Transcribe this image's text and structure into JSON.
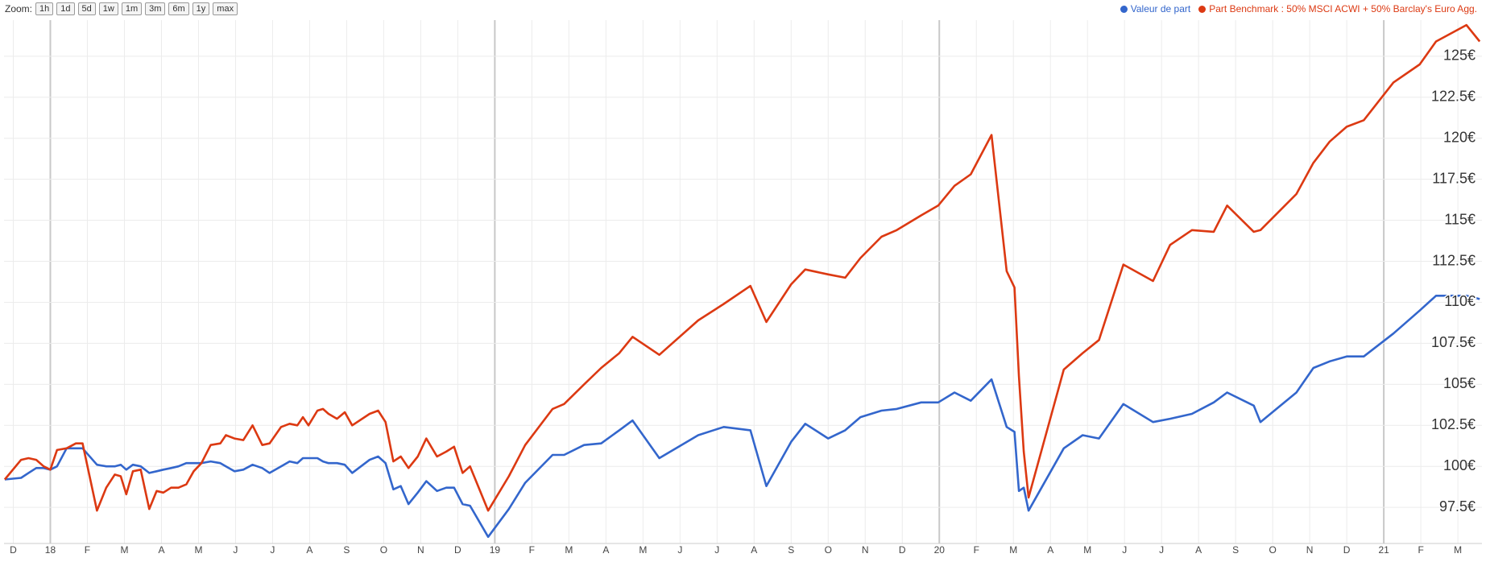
{
  "toolbar": {
    "label": "Zoom:",
    "buttons": [
      "1h",
      "1d",
      "5d",
      "1w",
      "1m",
      "3m",
      "6m",
      "1y",
      "max"
    ]
  },
  "chart_data": {
    "type": "line",
    "x": [
      -0.23,
      0.21,
      0.41,
      0.62,
      0.82,
      1.0,
      1.18,
      1.44,
      1.69,
      1.87,
      2.26,
      2.51,
      2.74,
      2.9,
      3.05,
      3.23,
      3.44,
      3.67,
      3.87,
      4.05,
      4.26,
      4.46,
      4.67,
      4.87,
      5.08,
      5.33,
      5.59,
      5.74,
      5.97,
      6.21,
      6.46,
      6.72,
      6.92,
      7.23,
      7.46,
      7.67,
      7.82,
      7.97,
      8.21,
      8.36,
      8.51,
      8.74,
      8.95,
      9.15,
      9.62,
      9.85,
      10.05,
      10.26,
      10.46,
      10.67,
      10.92,
      11.15,
      11.44,
      11.69,
      11.9,
      12.13,
      12.33,
      12.82,
      13.38,
      13.82,
      14.56,
      14.87,
      15.41,
      15.87,
      16.36,
      16.72,
      17.44,
      18.49,
      19.18,
      19.9,
      20.33,
      21.0,
      21.38,
      22.0,
      22.46,
      22.87,
      23.44,
      23.85,
      24.51,
      24.97,
      25.41,
      25.85,
      26.41,
      26.82,
      27.03,
      27.15,
      27.28,
      27.41,
      28.36,
      28.87,
      29.31,
      29.97,
      30.77,
      31.23,
      31.82,
      32.41,
      32.77,
      33.49,
      33.67,
      34.64,
      35.1,
      35.54,
      36.0,
      36.46,
      37.26,
      37.97,
      38.41,
      39.23,
      39.59
    ],
    "series": [
      {
        "name": "Valeur de part",
        "color": "#3366cc",
        "values": [
          99.2,
          99.3,
          99.6,
          99.9,
          99.9,
          99.8,
          100.0,
          101.1,
          101.1,
          101.1,
          100.1,
          100.0,
          100.0,
          100.1,
          99.8,
          100.1,
          100.0,
          99.6,
          99.7,
          99.8,
          99.9,
          100.0,
          100.2,
          100.2,
          100.2,
          100.3,
          100.2,
          100.0,
          99.7,
          99.8,
          100.1,
          99.9,
          99.6,
          100.0,
          100.3,
          100.2,
          100.5,
          100.5,
          100.5,
          100.3,
          100.2,
          100.2,
          100.1,
          99.6,
          100.4,
          100.6,
          100.2,
          98.6,
          98.8,
          97.7,
          98.4,
          99.1,
          98.5,
          98.7,
          98.7,
          97.7,
          97.6,
          95.7,
          97.4,
          99.0,
          100.7,
          100.7,
          101.3,
          101.4,
          102.2,
          102.8,
          100.5,
          101.9,
          102.4,
          102.2,
          98.8,
          101.5,
          102.6,
          101.7,
          102.2,
          103.0,
          103.4,
          103.5,
          103.9,
          103.9,
          104.5,
          104.0,
          105.3,
          102.4,
          102.1,
          98.5,
          98.7,
          97.3,
          101.1,
          101.9,
          101.7,
          103.8,
          102.7,
          102.9,
          103.2,
          103.9,
          104.5,
          103.7,
          102.7,
          104.5,
          106.0,
          106.4,
          106.7,
          106.7,
          108.1,
          109.5,
          110.4,
          110.4,
          110.2
        ]
      },
      {
        "name": "Part Benchmark : 50% MSCI ACWI + 50% Barclay's Euro Agg.",
        "color": "#dc3912",
        "values": [
          99.2,
          100.4,
          100.5,
          100.4,
          100.0,
          99.8,
          101.0,
          101.1,
          101.4,
          101.4,
          97.3,
          98.7,
          99.5,
          99.4,
          98.3,
          99.7,
          99.8,
          97.4,
          98.5,
          98.4,
          98.7,
          98.7,
          98.9,
          99.7,
          100.2,
          101.3,
          101.4,
          101.9,
          101.7,
          101.6,
          102.5,
          101.3,
          101.4,
          102.4,
          102.6,
          102.5,
          103.0,
          102.5,
          103.4,
          103.5,
          103.2,
          102.9,
          103.3,
          102.5,
          103.2,
          103.4,
          102.7,
          100.3,
          100.6,
          99.9,
          100.6,
          101.7,
          100.6,
          100.9,
          101.2,
          99.6,
          100.0,
          97.3,
          99.4,
          101.3,
          103.5,
          103.8,
          105.0,
          106.0,
          106.9,
          107.9,
          106.8,
          108.9,
          109.9,
          111.0,
          108.8,
          111.1,
          112.0,
          111.7,
          111.5,
          112.7,
          114.0,
          114.4,
          115.3,
          115.9,
          117.1,
          117.8,
          120.2,
          111.9,
          110.9,
          105.5,
          100.9,
          98.1,
          105.9,
          106.9,
          107.7,
          112.3,
          111.3,
          113.5,
          114.4,
          114.3,
          115.9,
          114.3,
          114.4,
          116.6,
          118.5,
          119.8,
          120.7,
          121.1,
          123.4,
          124.5,
          125.9,
          126.9,
          125.9
        ]
      }
    ],
    "xlim": [
      -0.25,
      39.65
    ],
    "xticks": [
      {
        "value": 0,
        "label": "D"
      },
      {
        "value": 1,
        "label": "18"
      },
      {
        "value": 2,
        "label": "F"
      },
      {
        "value": 3,
        "label": "M"
      },
      {
        "value": 4,
        "label": "A"
      },
      {
        "value": 5,
        "label": "M"
      },
      {
        "value": 6,
        "label": "J"
      },
      {
        "value": 7,
        "label": "J"
      },
      {
        "value": 8,
        "label": "A"
      },
      {
        "value": 9,
        "label": "S"
      },
      {
        "value": 10,
        "label": "O"
      },
      {
        "value": 11,
        "label": "N"
      },
      {
        "value": 12,
        "label": "D"
      },
      {
        "value": 13,
        "label": "19"
      },
      {
        "value": 14,
        "label": "F"
      },
      {
        "value": 15,
        "label": "M"
      },
      {
        "value": 16,
        "label": "A"
      },
      {
        "value": 17,
        "label": "M"
      },
      {
        "value": 18,
        "label": "J"
      },
      {
        "value": 19,
        "label": "J"
      },
      {
        "value": 20,
        "label": "A"
      },
      {
        "value": 21,
        "label": "S"
      },
      {
        "value": 22,
        "label": "O"
      },
      {
        "value": 23,
        "label": "N"
      },
      {
        "value": 24,
        "label": "D"
      },
      {
        "value": 25,
        "label": "20"
      },
      {
        "value": 26,
        "label": "F"
      },
      {
        "value": 27,
        "label": "M"
      },
      {
        "value": 28,
        "label": "A"
      },
      {
        "value": 29,
        "label": "M"
      },
      {
        "value": 30,
        "label": "J"
      },
      {
        "value": 31,
        "label": "J"
      },
      {
        "value": 32,
        "label": "A"
      },
      {
        "value": 33,
        "label": "S"
      },
      {
        "value": 34,
        "label": "O"
      },
      {
        "value": 35,
        "label": "N"
      },
      {
        "value": 36,
        "label": "D"
      },
      {
        "value": 37,
        "label": "21"
      },
      {
        "value": 38,
        "label": "F"
      },
      {
        "value": 39,
        "label": "M"
      }
    ],
    "ylim": [
      95.3,
      127.2
    ],
    "yticks": [
      {
        "value": 97.5,
        "label": "97.5€"
      },
      {
        "value": 100,
        "label": "100€"
      },
      {
        "value": 102.5,
        "label": "102.5€"
      },
      {
        "value": 105,
        "label": "105€"
      },
      {
        "value": 107.5,
        "label": "107.5€"
      },
      {
        "value": 110,
        "label": "110€"
      },
      {
        "value": 112.5,
        "label": "112.5€"
      },
      {
        "value": 115,
        "label": "115€"
      },
      {
        "value": 117.5,
        "label": "117.5€"
      },
      {
        "value": 120,
        "label": "120€"
      },
      {
        "value": 122.5,
        "label": "122.5€"
      },
      {
        "value": 125,
        "label": "125€"
      }
    ],
    "grid": true,
    "legend": "top-right"
  }
}
